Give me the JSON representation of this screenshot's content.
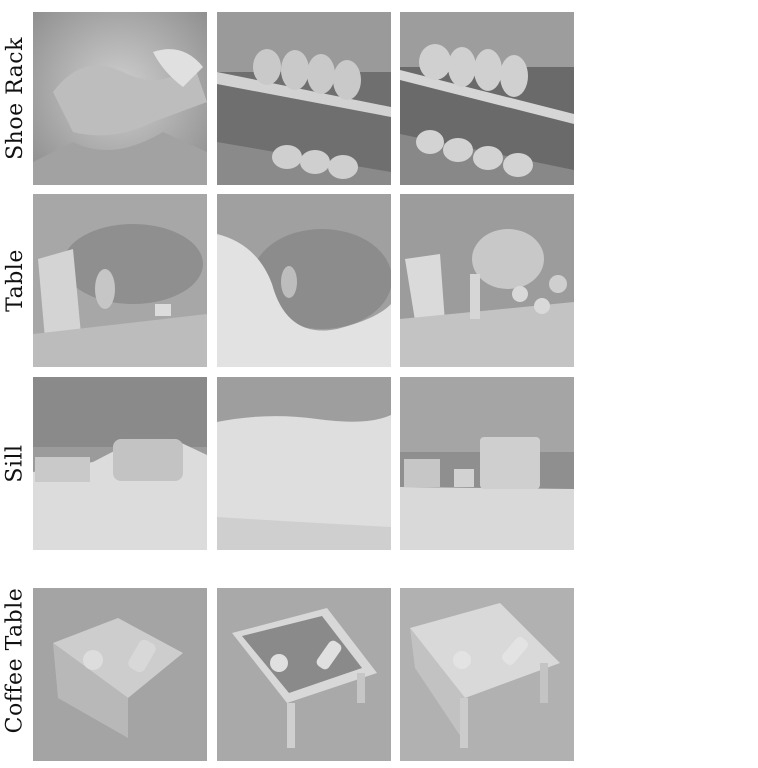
{
  "rows": [
    {
      "label": "Shoe Rack"
    },
    {
      "label": "Table"
    },
    {
      "label": "Sill"
    },
    {
      "label": "Coffee Table"
    }
  ],
  "colors": {
    "background": "#ffffff",
    "render_light": "#d9d9d9",
    "render_mid": "#b5b5b5",
    "render_dark": "#6e6e6e"
  }
}
